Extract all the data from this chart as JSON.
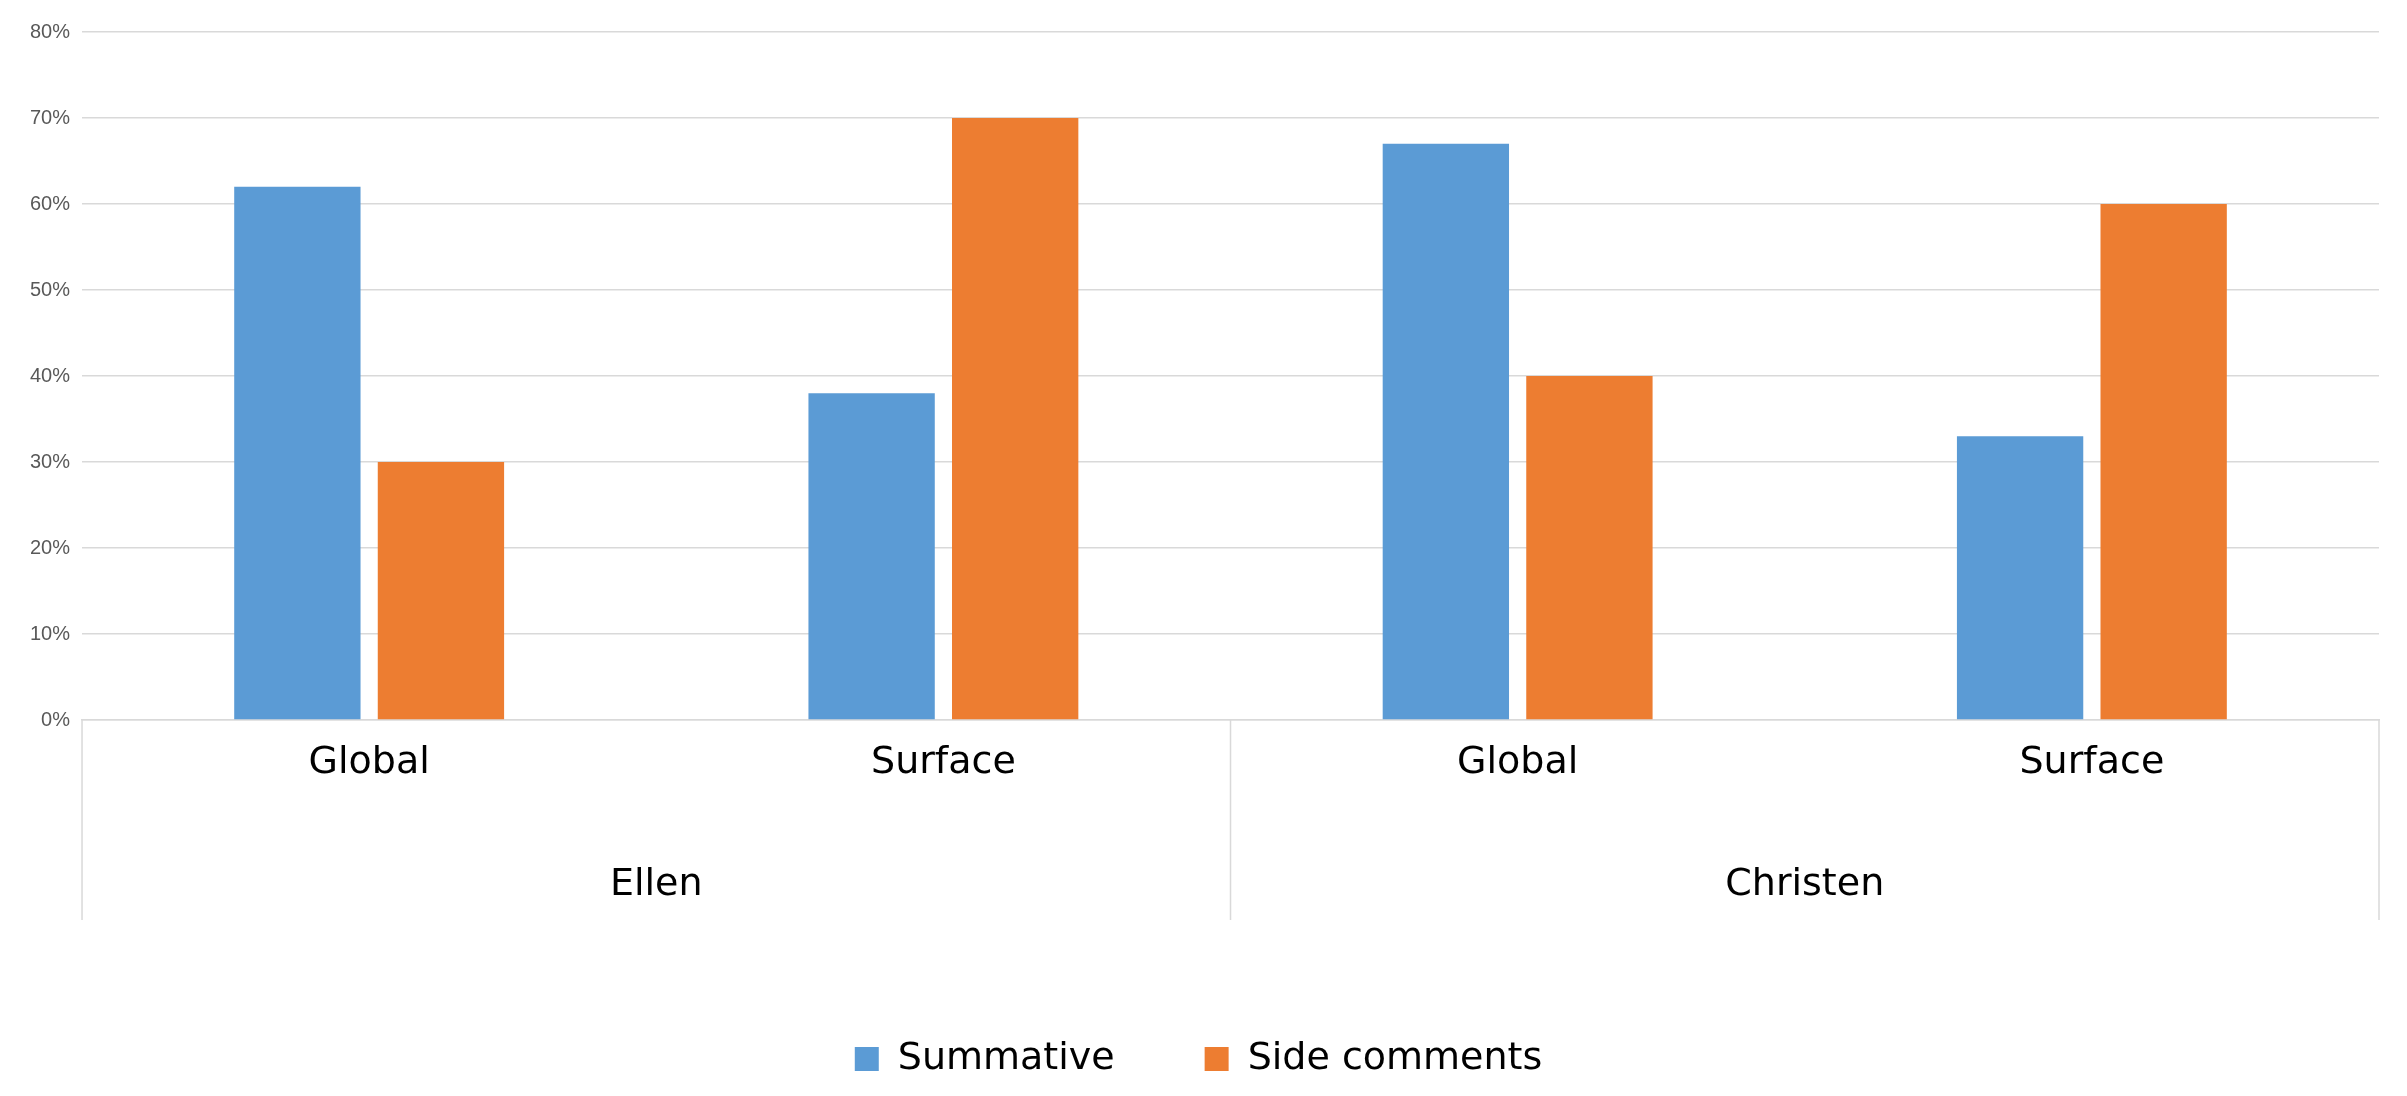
{
  "chart_data": {
    "type": "bar",
    "categories": [
      "Global",
      "Surface",
      "Global",
      "Surface"
    ],
    "series": [
      {
        "name": "Summative",
        "color": "#5b9bd5",
        "values": [
          62,
          38,
          67,
          33
        ]
      },
      {
        "name": "Side comments",
        "color": "#ed7d31",
        "values": [
          30,
          70,
          40,
          60
        ]
      }
    ],
    "ylim": [
      0,
      80
    ],
    "yticks": [
      {
        "value": 0,
        "label": "0%"
      },
      {
        "value": 10,
        "label": "10%"
      },
      {
        "value": 20,
        "label": "20%"
      },
      {
        "value": 30,
        "label": "30%"
      },
      {
        "value": 40,
        "label": "40%"
      },
      {
        "value": 50,
        "label": "50%"
      },
      {
        "value": 60,
        "label": "60%"
      },
      {
        "value": 70,
        "label": "70%"
      },
      {
        "value": 80,
        "label": "80%"
      }
    ],
    "annotations": [
      "Ellen",
      "Christen"
    ],
    "grid": "y",
    "legend": "bottom"
  }
}
